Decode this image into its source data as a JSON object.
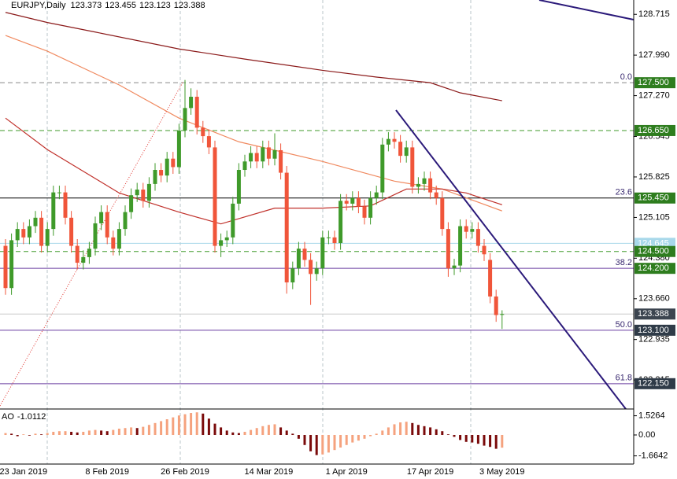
{
  "chart_data": [
    {
      "type": "candlestick",
      "symbol": "EURJPY,Daily",
      "categories": [
        null,
        null,
        null,
        "23 Jan 2019",
        null,
        null,
        null,
        null,
        null,
        null,
        null,
        null,
        null,
        null,
        null,
        null,
        null,
        "8 Feb 2019",
        null,
        null,
        null,
        null,
        null,
        null,
        null,
        null,
        null,
        null,
        null,
        null,
        "26 Feb 2019",
        null,
        null,
        null,
        null,
        null,
        null,
        null,
        null,
        null,
        null,
        null,
        null,
        null,
        "14 Mar 2019",
        null,
        null,
        null,
        null,
        null,
        null,
        null,
        null,
        null,
        null,
        null,
        null,
        "1 Apr 2019",
        null,
        null,
        null,
        null,
        null,
        null,
        null,
        null,
        null,
        null,
        null,
        null,
        null,
        "17 Apr 2019",
        null,
        null,
        null,
        null,
        null,
        null,
        null,
        null,
        null,
        null,
        null,
        "3 May 2019"
      ],
      "open": [
        124.6,
        123.85,
        124.7,
        124.9,
        124.75,
        124.95,
        125.1,
        124.6,
        124.9,
        125.55,
        125.55,
        125.1,
        124.6,
        124.3,
        124.4,
        124.55,
        125.0,
        125.2,
        124.75,
        124.55,
        124.9,
        125.2,
        125.5,
        125.6,
        125.4,
        125.7,
        125.95,
        125.85,
        126.15,
        126.0,
        126.65,
        127.05,
        127.25,
        126.7,
        126.55,
        126.35,
        124.6,
        124.7,
        124.75,
        125.35,
        125.95,
        126.1,
        126.25,
        126.1,
        126.35,
        126.15,
        126.3,
        125.9,
        123.95,
        124.2,
        124.55,
        124.35,
        124.1,
        124.2,
        124.75,
        124.75,
        124.65,
        125.4,
        125.35,
        125.45,
        125.3,
        125.1,
        125.45,
        125.55,
        126.4,
        126.5,
        126.45,
        126.2,
        126.35,
        125.65,
        125.7,
        125.8,
        125.55,
        125.45,
        124.9,
        124.2,
        124.25,
        124.95,
        124.85,
        124.9,
        124.6,
        124.35,
        123.7,
        123.373
      ],
      "high": [
        124.72,
        124.82,
        125.02,
        125.02,
        125.07,
        125.22,
        125.22,
        125.02,
        125.67,
        125.67,
        125.67,
        125.22,
        124.72,
        124.52,
        124.67,
        125.12,
        125.32,
        125.32,
        124.87,
        125.02,
        125.32,
        125.62,
        125.72,
        125.72,
        125.82,
        126.07,
        126.07,
        126.27,
        126.27,
        126.77,
        127.55,
        127.4,
        127.37,
        126.82,
        126.67,
        126.47,
        124.82,
        124.87,
        125.47,
        126.07,
        126.22,
        126.37,
        126.37,
        126.47,
        126.47,
        126.6,
        126.42,
        126.02,
        124.32,
        124.67,
        124.67,
        124.47,
        124.32,
        124.87,
        124.87,
        124.87,
        125.52,
        125.52,
        125.57,
        125.57,
        125.42,
        125.57,
        125.67,
        126.52,
        126.62,
        126.62,
        126.57,
        126.47,
        126.47,
        125.82,
        125.92,
        125.92,
        125.67,
        125.57,
        125.02,
        124.37,
        125.07,
        125.07,
        125.02,
        125.02,
        124.72,
        124.47,
        123.82,
        123.455
      ],
      "low": [
        123.73,
        123.73,
        124.58,
        124.63,
        124.63,
        124.83,
        124.48,
        124.48,
        124.78,
        125.43,
        124.98,
        124.48,
        124.18,
        124.18,
        124.28,
        124.43,
        124.88,
        124.63,
        124.43,
        124.43,
        124.78,
        125.08,
        125.38,
        125.28,
        125.28,
        125.58,
        125.73,
        125.73,
        125.88,
        125.88,
        126.53,
        126.93,
        126.58,
        126.43,
        126.23,
        124.48,
        124.4,
        124.58,
        124.63,
        125.23,
        125.83,
        125.98,
        125.98,
        125.98,
        126.03,
        126.03,
        125.78,
        123.75,
        123.83,
        124.08,
        124.23,
        123.55,
        123.98,
        124.08,
        124.63,
        124.53,
        124.53,
        125.23,
        125.23,
        125.18,
        124.98,
        124.98,
        125.33,
        125.43,
        126.28,
        126.33,
        126.08,
        126.08,
        125.53,
        125.53,
        125.58,
        125.43,
        125.33,
        124.78,
        124.05,
        124.08,
        124.13,
        124.73,
        124.73,
        124.48,
        124.33,
        123.58,
        123.25,
        123.123
      ],
      "close": [
        123.85,
        124.7,
        124.9,
        124.75,
        124.95,
        125.1,
        124.6,
        124.9,
        125.55,
        125.55,
        125.1,
        124.6,
        124.3,
        124.4,
        124.55,
        125.0,
        125.2,
        124.75,
        124.55,
        124.9,
        125.2,
        125.5,
        125.6,
        125.4,
        125.7,
        125.95,
        125.85,
        126.15,
        126.0,
        126.65,
        127.05,
        127.25,
        126.7,
        126.55,
        126.35,
        124.6,
        124.7,
        124.75,
        125.35,
        125.95,
        126.1,
        126.25,
        126.1,
        126.35,
        126.15,
        126.3,
        125.9,
        123.95,
        124.2,
        124.55,
        124.35,
        124.1,
        124.2,
        124.75,
        124.75,
        124.65,
        125.4,
        125.35,
        125.45,
        125.3,
        125.1,
        125.45,
        125.55,
        126.4,
        126.5,
        126.45,
        126.2,
        126.35,
        125.65,
        125.7,
        125.8,
        125.55,
        125.45,
        124.9,
        124.2,
        124.25,
        124.95,
        124.85,
        124.9,
        124.6,
        124.45,
        123.7,
        123.37,
        123.388
      ],
      "up_color": "#3f9a2a",
      "down_color": "#f0553a",
      "ylim": [
        121.7,
        128.97
      ],
      "yticks": [
        128.715,
        {
          "value": 127.99,
          "label": "127.990"
        },
        {
          "value": 127.27,
          "label": "127.270"
        },
        126.545,
        125.825,
        125.105,
        {
          "value": 124.38,
          "label": "124.380"
        },
        {
          "value": 123.66,
          "label": "123.660"
        },
        122.935,
        122.215
      ],
      "moving_averages": [
        {
          "color": "#8b1a1a",
          "x": [
            0,
            7,
            15,
            29,
            40,
            53,
            62,
            71,
            76,
            83
          ],
          "values": [
            128.75,
            128.57,
            128.4,
            128.1,
            127.92,
            127.72,
            127.6,
            127.5,
            127.32,
            127.18
          ]
        },
        {
          "color": "#f08a60",
          "x": [
            0,
            7,
            19,
            29,
            39,
            53,
            65,
            73,
            83
          ],
          "values": [
            128.34,
            128.06,
            127.46,
            126.87,
            126.45,
            126.1,
            125.75,
            125.61,
            125.22
          ]
        },
        {
          "color": "#c0302a",
          "x": [
            0,
            7,
            19,
            29,
            36,
            45,
            53,
            61,
            67,
            73,
            77,
            83
          ],
          "values": [
            126.87,
            126.31,
            125.54,
            125.2,
            124.99,
            125.27,
            125.27,
            125.31,
            125.61,
            125.61,
            125.54,
            125.33
          ]
        }
      ],
      "levels": [
        {
          "value": 127.5,
          "label": "127.500",
          "fib": "0.0",
          "line_color": "#888888",
          "dash": true,
          "box_color": "#2e7d1e",
          "text_color": "#ffffff"
        },
        {
          "value": 126.65,
          "label": "126.650",
          "line_color": "#3f9a2a",
          "dash": true,
          "box_color": "#2e7d1e",
          "text_color": "#ffffff"
        },
        {
          "value": 125.45,
          "label": "125.450",
          "fib": "23.6",
          "line_color": "#000000",
          "dash": false,
          "box_color": "#2e7d1e",
          "text_color": "#ffffff"
        },
        {
          "value": 124.645,
          "label": "124.645",
          "line_color": "#a8d8ea",
          "dash": false,
          "box_color": "#a8d8ea",
          "text_color": "#ffffff"
        },
        {
          "value": 124.5,
          "label": "124.500",
          "line_color": "#3f9a2a",
          "dash": true,
          "box_color": "#2e7d1e",
          "text_color": "#ffffff"
        },
        {
          "value": 124.2,
          "label": "124.200",
          "fib": "38.2",
          "line_color": "#6a3fa0",
          "dash": false,
          "box_color": "#2e7d1e",
          "text_color": "#ffffff"
        },
        {
          "value": 123.388,
          "label": "123.388",
          "line_color": "#c8c8c8",
          "dash": false,
          "box_color": "#3c4550",
          "text_color": "#ffffff"
        },
        {
          "value": 123.1,
          "label": "123.100",
          "fib": "50.0",
          "line_color": "#6a3fa0",
          "dash": false,
          "box_color": "#2f3b48",
          "text_color": "#ffffff"
        },
        {
          "value": 122.15,
          "label": "122.150",
          "fib": "61.8",
          "line_color": "#6a3fa0",
          "dash": false,
          "box_color": "#2f3b48",
          "text_color": "#ffffff"
        }
      ]
    },
    {
      "type": "histogram",
      "title": "AO",
      "values": [
        0.15,
        0.1,
        -0.1,
        0.05,
        -0.05,
        0.1,
        0.05,
        0.15,
        0.25,
        0.3,
        0.3,
        0.25,
        0.2,
        0.25,
        0.35,
        0.4,
        0.35,
        0.3,
        0.4,
        0.5,
        0.55,
        0.6,
        0.55,
        0.65,
        0.8,
        0.95,
        1.1,
        1.25,
        1.4,
        1.55,
        1.65,
        1.75,
        1.8,
        1.7,
        1.3,
        0.9,
        0.6,
        0.35,
        0.2,
        0.15,
        0.25,
        0.4,
        0.55,
        0.7,
        0.8,
        0.85,
        0.6,
        0.35,
        0.1,
        -0.3,
        -0.8,
        -1.3,
        -1.6,
        -1.55,
        -1.4,
        -1.2,
        -1.0,
        -0.8,
        -0.6,
        -0.45,
        -0.3,
        -0.1,
        0.1,
        0.35,
        0.6,
        0.85,
        1.0,
        1.05,
        0.95,
        0.8,
        0.7,
        0.6,
        0.45,
        0.3,
        0.05,
        -0.15,
        -0.4,
        -0.55,
        -0.6,
        -0.7,
        -0.85,
        -0.95,
        -1.1,
        -1.0112
      ],
      "up_color": "#f5a27e",
      "down_color": "#7a0a0a",
      "ylim": [
        -2.19,
        1.94
      ],
      "yticks": [
        1.5264,
        {
          "value": 0,
          "label": "0.00"
        },
        -1.6642
      ]
    }
  ]
}
